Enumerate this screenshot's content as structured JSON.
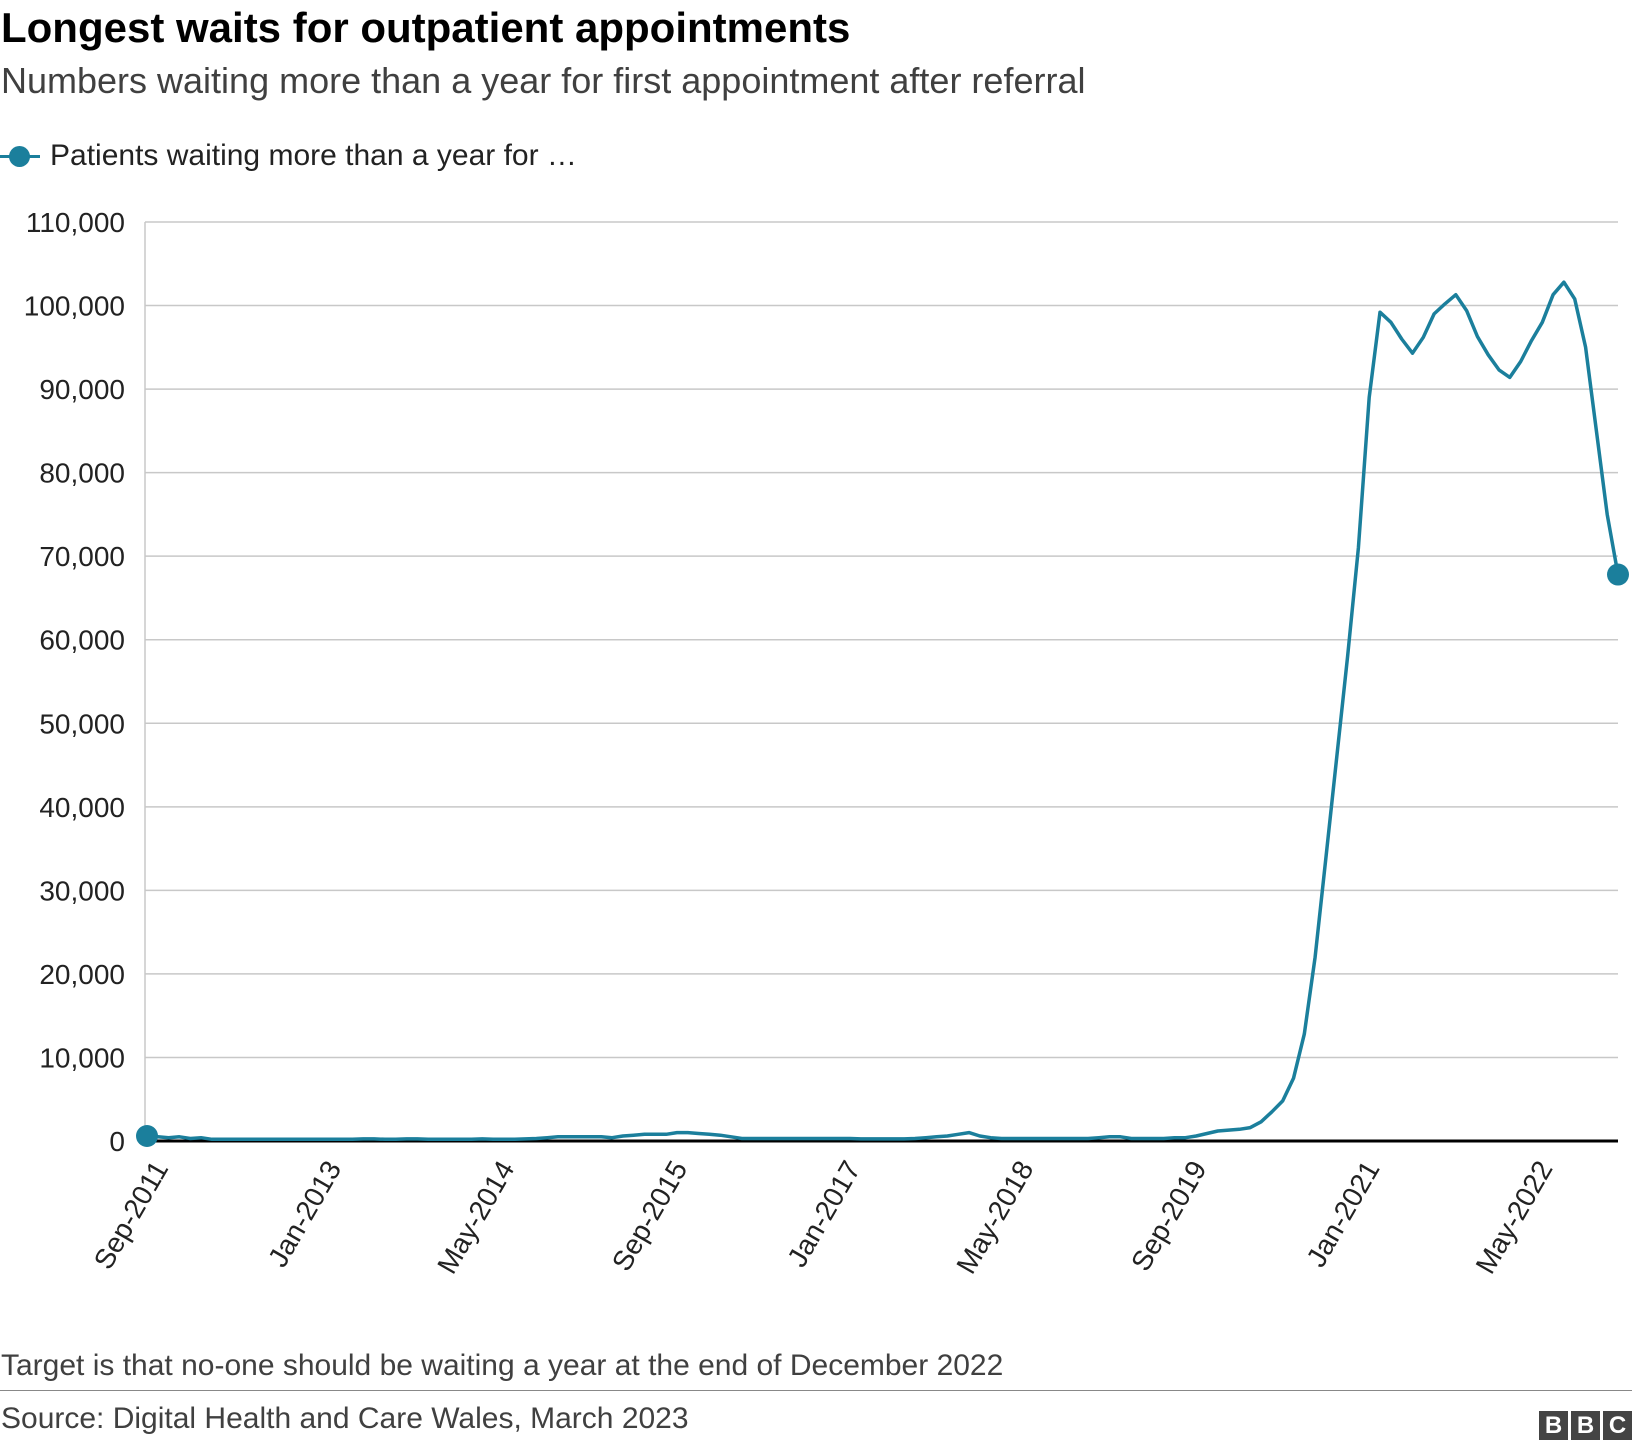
{
  "header": {
    "title": "Longest waits for outpatient appointments",
    "subtitle": "Numbers waiting more than a year for first appointment after referral"
  },
  "legend": {
    "label": "Patients waiting more than a year for …"
  },
  "footer": {
    "note": "Target is that no-one should be waiting a year at the end of December 2022",
    "source": "Source: Digital Health and Care Wales, March 2023",
    "logo_letters": [
      "B",
      "B",
      "C"
    ]
  },
  "colors": {
    "series": "#1b7f9c",
    "gridline": "#c8c8c8",
    "baseline": "#000000"
  },
  "chart_data": {
    "type": "line",
    "title": "Longest waits for outpatient appointments",
    "subtitle": "Numbers waiting more than a year for first appointment after referral",
    "xlabel": "",
    "ylabel": "",
    "ylim": [
      0,
      110000
    ],
    "y_ticks": [
      0,
      10000,
      20000,
      30000,
      40000,
      50000,
      60000,
      70000,
      80000,
      90000,
      100000,
      110000
    ],
    "y_tick_labels": [
      "0",
      "10,000",
      "20,000",
      "30,000",
      "40,000",
      "50,000",
      "60,000",
      "70,000",
      "80,000",
      "90,000",
      "100,000",
      "110,000"
    ],
    "x_tick_labels": [
      "Sep-2011",
      "Jan-2013",
      "May-2014",
      "Sep-2015",
      "Jan-2017",
      "May-2018",
      "Sep-2019",
      "Jan-2021",
      "May-2022"
    ],
    "x_tick_indices": [
      0,
      16,
      32,
      48,
      64,
      80,
      96,
      112,
      128
    ],
    "start": "Sep-2011",
    "end": "Jan-2023",
    "grid": true,
    "legend_position": "top-left",
    "series": [
      {
        "name": "Patients waiting more than a year for first appointment after referral",
        "values": [
          600,
          500,
          400,
          500,
          300,
          400,
          200,
          200,
          200,
          200,
          200,
          200,
          200,
          200,
          200,
          200,
          200,
          200,
          200,
          200,
          250,
          250,
          200,
          200,
          250,
          250,
          200,
          200,
          200,
          200,
          200,
          250,
          200,
          200,
          200,
          250,
          300,
          400,
          500,
          500,
          500,
          500,
          500,
          400,
          600,
          700,
          800,
          800,
          800,
          1000,
          1000,
          900,
          800,
          700,
          500,
          300,
          300,
          300,
          300,
          300,
          300,
          300,
          300,
          300,
          300,
          300,
          250,
          250,
          250,
          250,
          250,
          300,
          400,
          500,
          600,
          800,
          1000,
          600,
          400,
          300,
          300,
          300,
          300,
          300,
          300,
          300,
          300,
          300,
          400,
          500,
          500,
          300,
          300,
          300,
          300,
          400,
          400,
          600,
          900,
          1200,
          1300,
          1400,
          1600,
          2300,
          3500,
          4800,
          7500,
          12800,
          22000,
          34000,
          46000,
          58000,
          71000,
          89000,
          99200,
          98000,
          96000,
          94300,
          96200,
          99000,
          100200,
          101300,
          99400,
          96300,
          94100,
          92300,
          91400,
          93300,
          95800,
          98000,
          101300,
          102800,
          100800,
          95000,
          85000,
          75000,
          67800
        ]
      }
    ]
  }
}
